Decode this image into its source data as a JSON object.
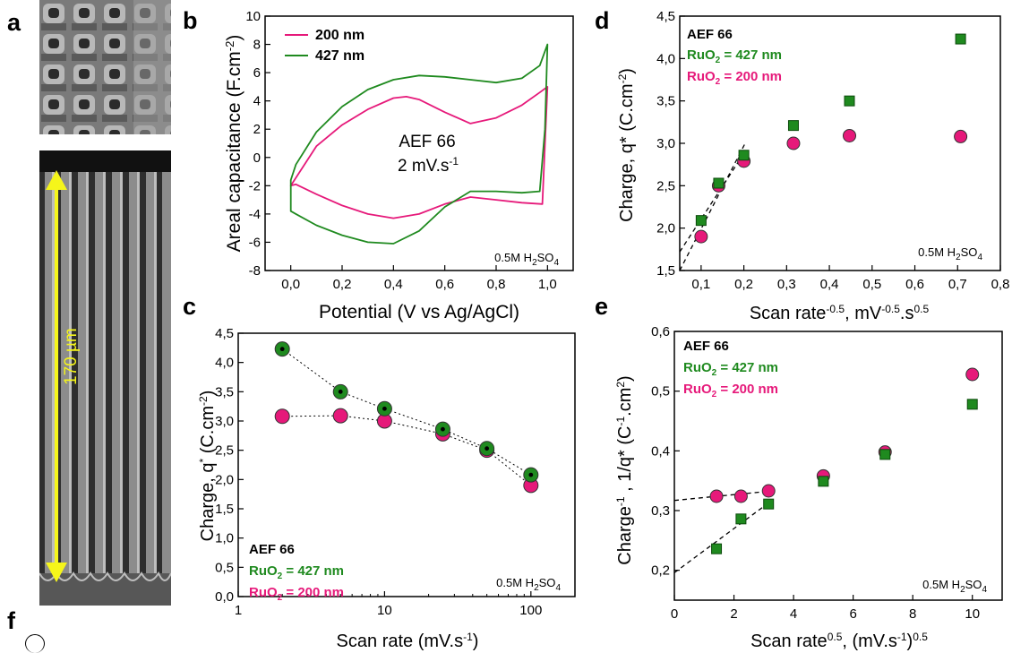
{
  "panel_labels": {
    "a": "a",
    "b": "b",
    "c": "c",
    "d": "d",
    "e": "e",
    "f": "f"
  },
  "image_a": {
    "scale_label": "170 µm"
  },
  "colors": {
    "pink": "#e6197a",
    "green": "#1f8a1f",
    "dark_green": "#0b5a0b"
  },
  "chart_data": [
    {
      "id": "b",
      "type": "line",
      "xlabel": "Potential (V vs Ag/AgCl)",
      "ylabel": "Areal capacitance (F.cm-2)",
      "xlim": [
        -0.1,
        1.1
      ],
      "ylim": [
        -8,
        10
      ],
      "xticks": [
        "0,0",
        "0,2",
        "0,4",
        "0,6",
        "0,8",
        "1,0"
      ],
      "yticks": [
        "-8",
        "-6",
        "-4",
        "-2",
        "0",
        "2",
        "4",
        "6",
        "8",
        "10"
      ],
      "legend": [
        "200 nm",
        "427 nm"
      ],
      "annotation": [
        "AEF 66",
        "2 mV.s-1"
      ],
      "electrolyte": "0.5M H2SO4",
      "series": [
        {
          "name": "200 nm",
          "color": "#e6197a",
          "upper": [
            [
              0,
              -2.0
            ],
            [
              0.1,
              0.8
            ],
            [
              0.2,
              2.3
            ],
            [
              0.3,
              3.4
            ],
            [
              0.4,
              4.2
            ],
            [
              0.45,
              4.3
            ],
            [
              0.5,
              4.1
            ],
            [
              0.6,
              3.2
            ],
            [
              0.7,
              2.4
            ],
            [
              0.8,
              2.8
            ],
            [
              0.9,
              3.7
            ],
            [
              0.97,
              4.6
            ],
            [
              1.0,
              5.0
            ]
          ],
          "lower": [
            [
              1.0,
              5.0
            ],
            [
              0.98,
              -3.3
            ],
            [
              0.9,
              -3.2
            ],
            [
              0.8,
              -3.0
            ],
            [
              0.7,
              -2.8
            ],
            [
              0.6,
              -3.3
            ],
            [
              0.5,
              -4.0
            ],
            [
              0.4,
              -4.3
            ],
            [
              0.3,
              -4.0
            ],
            [
              0.2,
              -3.4
            ],
            [
              0.1,
              -2.6
            ],
            [
              0.02,
              -1.9
            ],
            [
              0,
              -2.0
            ]
          ]
        },
        {
          "name": "427 nm",
          "color": "#1f8a1f",
          "upper": [
            [
              0,
              -1.6
            ],
            [
              0.02,
              -0.5
            ],
            [
              0.1,
              1.8
            ],
            [
              0.2,
              3.6
            ],
            [
              0.3,
              4.8
            ],
            [
              0.4,
              5.5
            ],
            [
              0.5,
              5.8
            ],
            [
              0.6,
              5.7
            ],
            [
              0.7,
              5.5
            ],
            [
              0.8,
              5.3
            ],
            [
              0.9,
              5.6
            ],
            [
              0.97,
              6.5
            ],
            [
              1.0,
              8.0
            ]
          ],
          "lower": [
            [
              1.0,
              8.0
            ],
            [
              0.99,
              2.0
            ],
            [
              0.97,
              -2.4
            ],
            [
              0.9,
              -2.5
            ],
            [
              0.8,
              -2.4
            ],
            [
              0.7,
              -2.4
            ],
            [
              0.6,
              -3.5
            ],
            [
              0.5,
              -5.2
            ],
            [
              0.4,
              -6.1
            ],
            [
              0.3,
              -6.0
            ],
            [
              0.2,
              -5.5
            ],
            [
              0.1,
              -4.8
            ],
            [
              0.02,
              -4.0
            ],
            [
              0,
              -3.8
            ]
          ]
        }
      ]
    },
    {
      "id": "c",
      "type": "scatter",
      "xscale": "log",
      "xlabel": "Scan rate (mV.s-1)",
      "ylabel": "Charge, q* (C.cm-2)",
      "xlim": [
        1,
        200
      ],
      "ylim": [
        0,
        4.5
      ],
      "xticks": [
        "1",
        "10",
        "100"
      ],
      "yticks": [
        "0,0",
        "0,5",
        "1,0",
        "1,5",
        "2,0",
        "2,5",
        "3,0",
        "3,5",
        "4,0",
        "4,5"
      ],
      "legend": [
        "AEF 66",
        "RuO2 = 427 nm",
        "RuO2 = 200 nm"
      ],
      "electrolyte": "0.5M H2SO4",
      "series": [
        {
          "name": "RuO2 = 200 nm",
          "color": "#e6197a",
          "x": [
            2,
            5,
            10,
            25,
            50,
            100
          ],
          "y": [
            3.08,
            3.09,
            3.0,
            2.78,
            2.5,
            1.9
          ]
        },
        {
          "name": "RuO2 = 427 nm",
          "color": "#1f8a1f",
          "x": [
            2,
            5,
            10,
            25,
            50,
            100
          ],
          "y": [
            4.23,
            3.5,
            3.21,
            2.86,
            2.53,
            2.08
          ]
        }
      ]
    },
    {
      "id": "d",
      "type": "scatter",
      "xlabel": "Scan rate-0.5, mV-0.5.s0.5",
      "ylabel": "Charge, q* (C.cm-2)",
      "xlim": [
        0.05,
        0.8
      ],
      "ylim": [
        1.5,
        4.5
      ],
      "xticks": [
        "0,1",
        "0,2",
        "0,3",
        "0,4",
        "0,5",
        "0,6",
        "0,7",
        "0,8"
      ],
      "yticks": [
        "1,5",
        "2,0",
        "2,5",
        "3,0",
        "3,5",
        "4,0",
        "4,5"
      ],
      "legend": [
        "AEF 66",
        "RuO2 = 427 nm",
        "RuO2 = 200 nm"
      ],
      "electrolyte": "0.5M H2SO4",
      "series": [
        {
          "name": "RuO2 = 200 nm",
          "color": "#e6197a",
          "x": [
            0.1,
            0.141,
            0.2,
            0.316,
            0.447,
            0.707
          ],
          "y": [
            1.9,
            2.5,
            2.79,
            3.0,
            3.09,
            3.08
          ]
        },
        {
          "name": "RuO2 = 427 nm",
          "color": "#1f8a1f",
          "x": [
            0.1,
            0.141,
            0.2,
            0.316,
            0.447,
            0.707
          ],
          "y": [
            2.09,
            2.53,
            2.86,
            3.21,
            3.5,
            4.23
          ]
        }
      ],
      "fit_lines": [
        [
          [
            0.05,
            1.5
          ],
          [
            0.205,
            3.02
          ]
        ],
        [
          [
            0.05,
            1.72
          ],
          [
            0.2,
            2.88
          ]
        ]
      ]
    },
    {
      "id": "e",
      "type": "scatter",
      "xlabel": "Scan rate0.5, (mV.s-1)0.5",
      "ylabel": "Charge-1 , 1/q* (C-1.cm2)",
      "xlim": [
        0,
        11
      ],
      "ylim": [
        0.15,
        0.6
      ],
      "xticks": [
        "0",
        "2",
        "4",
        "6",
        "8",
        "10"
      ],
      "yticks": [
        "0,2",
        "0,3",
        "0,4",
        "0,5",
        "0,6"
      ],
      "legend": [
        "AEF 66",
        "RuO2 = 427 nm",
        "RuO2 = 200 nm"
      ],
      "electrolyte": "0.5M H2SO4",
      "series": [
        {
          "name": "RuO2 = 200 nm",
          "color": "#e6197a",
          "x": [
            1.414,
            2.236,
            3.162,
            5,
            7.071,
            10
          ],
          "y": [
            0.324,
            0.324,
            0.333,
            0.358,
            0.398,
            0.528
          ]
        },
        {
          "name": "RuO2 = 427 nm",
          "color": "#1f8a1f",
          "x": [
            1.414,
            2.236,
            3.162,
            5,
            7.071,
            10
          ],
          "y": [
            0.236,
            0.286,
            0.311,
            0.349,
            0.394,
            0.478
          ]
        }
      ],
      "fit_lines": [
        [
          [
            0,
            0.317
          ],
          [
            3.3,
            0.333
          ]
        ],
        [
          [
            0,
            0.196
          ],
          [
            3.3,
            0.318
          ]
        ]
      ]
    }
  ]
}
